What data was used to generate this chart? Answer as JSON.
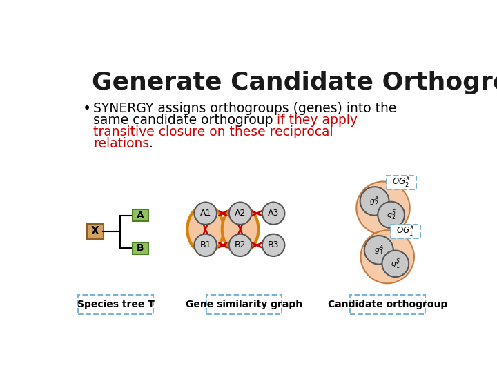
{
  "title": "Generate Candidate Orthogroup",
  "bullet_dot": "•",
  "label_tree": "Species tree T",
  "label_graph": "Gene similarity graph",
  "label_cand": "Candidate orthogroup",
  "bg_color": "#ffffff",
  "title_color": "#1a1a1a",
  "red_color": "#cc0000",
  "orange_fill": "#f5c6a0",
  "orange_border": "#d4820a",
  "node_fill": "#cccccc",
  "node_border": "#555555",
  "salmon_fill": "#f5c6a0",
  "arrow_color": "#cc0000",
  "box_border": "#7ab3d4"
}
